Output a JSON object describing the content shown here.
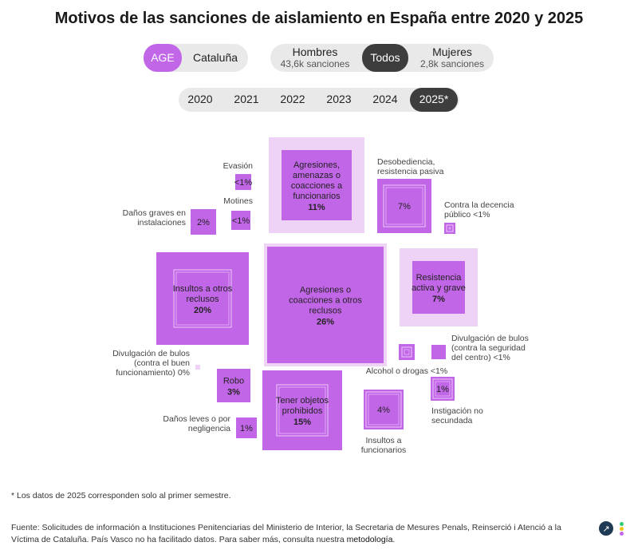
{
  "title": "Motivos de las sanciones de aislamiento en España entre 2020 y 2025",
  "filters": {
    "region": [
      {
        "label": "AGE",
        "selected": true
      },
      {
        "label": "Cataluña",
        "selected": false
      }
    ],
    "gender": [
      {
        "label": "Hombres",
        "sub": "43,6k sanciones",
        "selected": false
      },
      {
        "label": "Todos",
        "sub": "",
        "selected": true
      },
      {
        "label": "Mujeres",
        "sub": "2,8k sanciones",
        "selected": false
      }
    ],
    "years": [
      {
        "label": "2020",
        "selected": false
      },
      {
        "label": "2021",
        "selected": false
      },
      {
        "label": "2022",
        "selected": false
      },
      {
        "label": "2023",
        "selected": false
      },
      {
        "label": "2024",
        "selected": false
      },
      {
        "label": "2025*",
        "selected": true
      }
    ]
  },
  "colors": {
    "accent": "#c266e8",
    "light": "#eed3f7",
    "dark_selected": "#3d3d3d",
    "pill_bg": "#e9e9e9"
  },
  "chart_data": {
    "type": "treemap-squares",
    "unit": "%",
    "items": [
      {
        "name": "Agresiones, amenazas o coacciones a funcionarios",
        "value_label": "11%",
        "value": 11,
        "label_pos": "inside"
      },
      {
        "name": "Agresiones o coacciones a otros reclusos",
        "value_label": "26%",
        "value": 26,
        "label_pos": "inside"
      },
      {
        "name": "Insultos a otros reclusos",
        "value_label": "20%",
        "value": 20,
        "label_pos": "inside"
      },
      {
        "name": "Tener objetos prohibidos",
        "value_label": "15%",
        "value": 15,
        "label_pos": "inside"
      },
      {
        "name": "Resistencia activa y grave",
        "value_label": "7%",
        "value": 7,
        "label_pos": "inside"
      },
      {
        "name": "Desobediencia, resistencia pasiva",
        "value_label": "7%",
        "value": 7,
        "label_pos": "outside"
      },
      {
        "name": "Insultos a funcionarios",
        "value_label": "4%",
        "value": 4,
        "label_pos": "outside"
      },
      {
        "name": "Robo",
        "value_label": "3%",
        "value": 3,
        "label_pos": "inside"
      },
      {
        "name": "Daños graves en instalaciones",
        "value_label": "2%",
        "value": 2,
        "label_pos": "outside"
      },
      {
        "name": "Daños leves o por negligencia",
        "value_label": "1%",
        "value": 1,
        "label_pos": "outside"
      },
      {
        "name": "Instigación no secundada",
        "value_label": "1%",
        "value": 1,
        "label_pos": "outside"
      },
      {
        "name": "Evasión",
        "value_label": "<1%",
        "value": 0.5,
        "label_pos": "outside"
      },
      {
        "name": "Motines",
        "value_label": "<1%",
        "value": 0.5,
        "label_pos": "outside"
      },
      {
        "name": "Contra la decencia pública",
        "value_label": "<1%",
        "value": 0.3,
        "label_pos": "outside"
      },
      {
        "name": "Alcohol o drogas",
        "value_label": "<1%",
        "value": 0.5,
        "label_pos": "outside"
      },
      {
        "name": "Divulgación de bulos (contra la seguridad del centro)",
        "value_label": "<1%",
        "value": 0.4,
        "label_pos": "outside"
      },
      {
        "name": "Divulgación de bulos (contra el buen funcionamiento)",
        "value_label": "0%",
        "value": 0,
        "label_pos": "outside"
      }
    ]
  },
  "footnote": "* Los datos de 2025 corresponden solo al primer semestre.",
  "source": {
    "text": "Fuente: Solicitudes de información a Instituciones Penitenciarias del Ministerio de Interior, la Secretaria de Mesures Penals, Reinserció i Atenció a la Víctima de Cataluña. País Vasco no ha facilitado datos. Para saber más, consulta nuestra",
    "link": "metodología",
    "end": "."
  },
  "icons": {
    "external": "external-link-icon"
  }
}
